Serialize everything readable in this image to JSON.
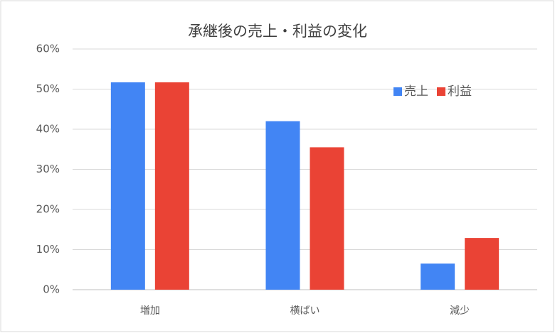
{
  "chart_data": {
    "type": "bar",
    "title": "承継後の売上・利益の変化",
    "categories": [
      "増加",
      "横ばい",
      "減少"
    ],
    "series": [
      {
        "name": "売上",
        "color": "#4285f4",
        "values": [
          51.7,
          42,
          6.5
        ]
      },
      {
        "name": "利益",
        "color": "#ea4335",
        "values": [
          51.7,
          35.5,
          12.9
        ]
      }
    ],
    "ylim": [
      0,
      60
    ],
    "yticks": [
      {
        "value": 0,
        "label": "0%"
      },
      {
        "value": 10,
        "label": "10%"
      },
      {
        "value": 20,
        "label": "20%"
      },
      {
        "value": 30,
        "label": "30%"
      },
      {
        "value": 40,
        "label": "40%"
      },
      {
        "value": 50,
        "label": "50%"
      },
      {
        "value": 60,
        "label": "60%"
      }
    ],
    "grid": true,
    "legend": "top-right"
  }
}
